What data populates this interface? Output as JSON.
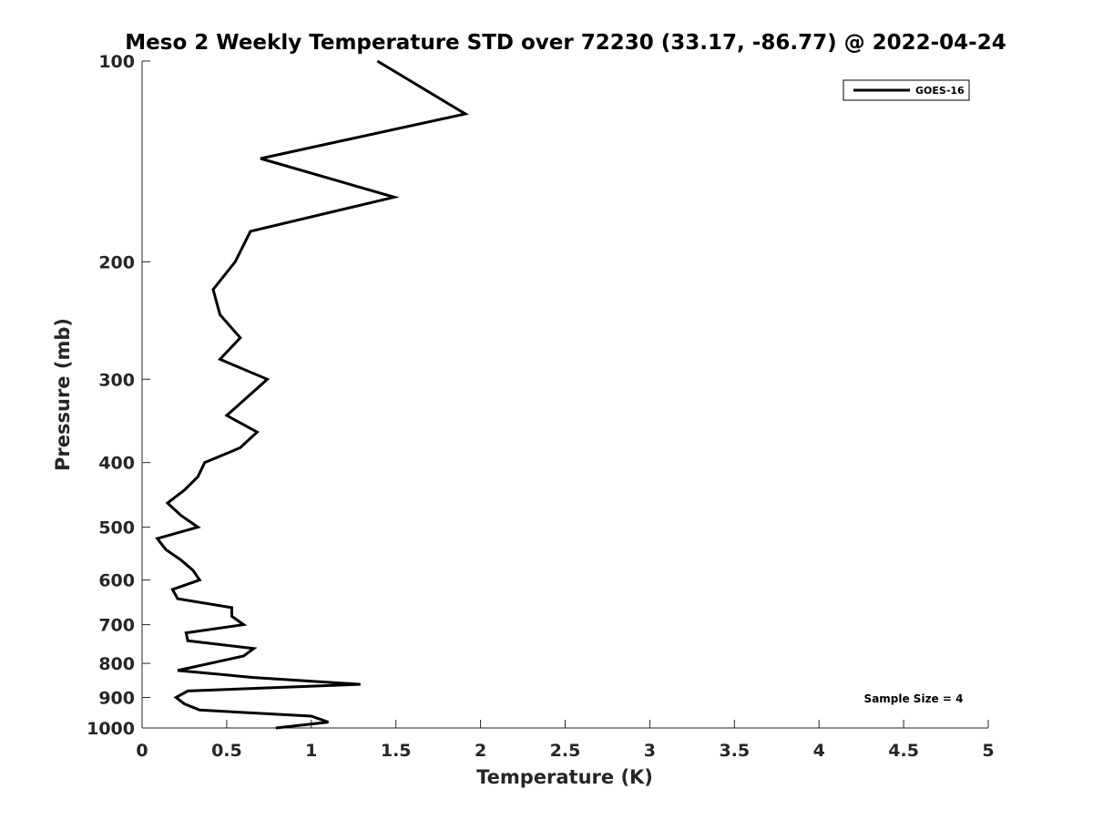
{
  "chart_data": {
    "type": "line",
    "title": "Meso 2 Weekly Temperature STD over 72230 (33.17, -86.77) @ 2022-04-24",
    "xlabel": "Temperature (K)",
    "ylabel": "Pressure (mb)",
    "xlim": [
      0,
      5
    ],
    "ylim": [
      100,
      1000
    ],
    "yscale": "log",
    "y_reversed": true,
    "grid": false,
    "x_ticks": [
      0,
      0.5,
      1,
      1.5,
      2,
      2.5,
      3,
      3.5,
      4,
      4.5,
      5
    ],
    "x_tick_labels": [
      "0",
      "0.5",
      "1",
      "1.5",
      "2",
      "2.5",
      "3",
      "3.5",
      "4",
      "4.5",
      "5"
    ],
    "y_ticks": [
      100,
      200,
      300,
      400,
      500,
      600,
      700,
      800,
      900,
      1000
    ],
    "y_tick_labels": [
      "100",
      "200",
      "300",
      "400",
      "500",
      "600",
      "700",
      "800",
      "900",
      "1000"
    ],
    "legend": {
      "placement": "top-right",
      "entries": [
        "GOES-16"
      ]
    },
    "annotation": "Sample Size = 4",
    "series": [
      {
        "name": "GOES-16",
        "color": "#000000",
        "x": [
          1.39,
          1.91,
          0.7,
          1.49,
          0.64,
          0.55,
          0.42,
          0.46,
          0.58,
          0.46,
          0.74,
          0.5,
          0.68,
          0.58,
          0.37,
          0.33,
          0.25,
          0.15,
          0.23,
          0.33,
          0.09,
          0.14,
          0.23,
          0.3,
          0.34,
          0.18,
          0.21,
          0.53,
          0.53,
          0.6,
          0.26,
          0.27,
          0.66,
          0.6,
          0.21,
          0.66,
          1.29,
          0.27,
          0.2,
          0.25,
          0.34,
          1.0,
          1.1,
          0.79
        ],
        "y": [
          100,
          120,
          140,
          160,
          180,
          200,
          220,
          240,
          260,
          280,
          300,
          340,
          360,
          380,
          400,
          420,
          440,
          460,
          480,
          500,
          520,
          540,
          560,
          580,
          600,
          620,
          640,
          660,
          680,
          700,
          720,
          740,
          760,
          780,
          820,
          840,
          860,
          880,
          900,
          920,
          940,
          960,
          980,
          1000
        ]
      }
    ]
  }
}
